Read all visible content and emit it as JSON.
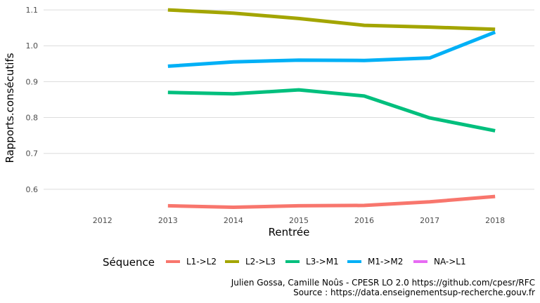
{
  "chart_data": {
    "type": "line",
    "x": [
      2012,
      2013,
      2014,
      2015,
      2016,
      2017,
      2018
    ],
    "xlabel": "Rentrée",
    "ylabel": "Rapports.consécutifs",
    "xlim": [
      2011.1,
      2018.6
    ],
    "ylim": [
      0.545,
      1.108
    ],
    "yticks": [
      0.6,
      0.7,
      0.8,
      0.9,
      1.0,
      1.1
    ],
    "ytick_labels": [
      "0.6",
      "0.7",
      "0.8",
      "0.9",
      "1.0",
      "1.1"
    ],
    "xticks": [
      2012,
      2013,
      2014,
      2015,
      2016,
      2017,
      2018
    ],
    "xtick_labels": [
      "2012",
      "2013",
      "2014",
      "2015",
      "2016",
      "2017",
      "2018"
    ],
    "grid": true,
    "legend_title": "Séquence",
    "legend_position": "bottom",
    "series": [
      {
        "name": "L1->L2",
        "color": "#F8766D",
        "values": [
          null,
          0.554,
          0.55,
          0.554,
          0.555,
          0.565,
          0.58
        ]
      },
      {
        "name": "L2->L3",
        "color": "#A3A500",
        "values": [
          null,
          1.1,
          1.091,
          1.076,
          1.057,
          1.052,
          1.046
        ]
      },
      {
        "name": "L3->M1",
        "color": "#00BF7D",
        "values": [
          null,
          0.87,
          0.866,
          0.877,
          0.86,
          0.799,
          0.763
        ]
      },
      {
        "name": "M1->M2",
        "color": "#00B0F6",
        "values": [
          null,
          0.943,
          0.955,
          0.96,
          0.959,
          0.966,
          1.038
        ]
      },
      {
        "name": "NA->L1",
        "color": "#E76BF3",
        "values": [
          null,
          null,
          null,
          null,
          null,
          null,
          null
        ]
      }
    ]
  },
  "caption": {
    "line1": "Julien Gossa, Camille Noûs - CPESR LO 2.0 https://github.com/cpesr/RFC",
    "line2": "Source : https://data.enseignementsup-recherche.gouv.fr"
  }
}
